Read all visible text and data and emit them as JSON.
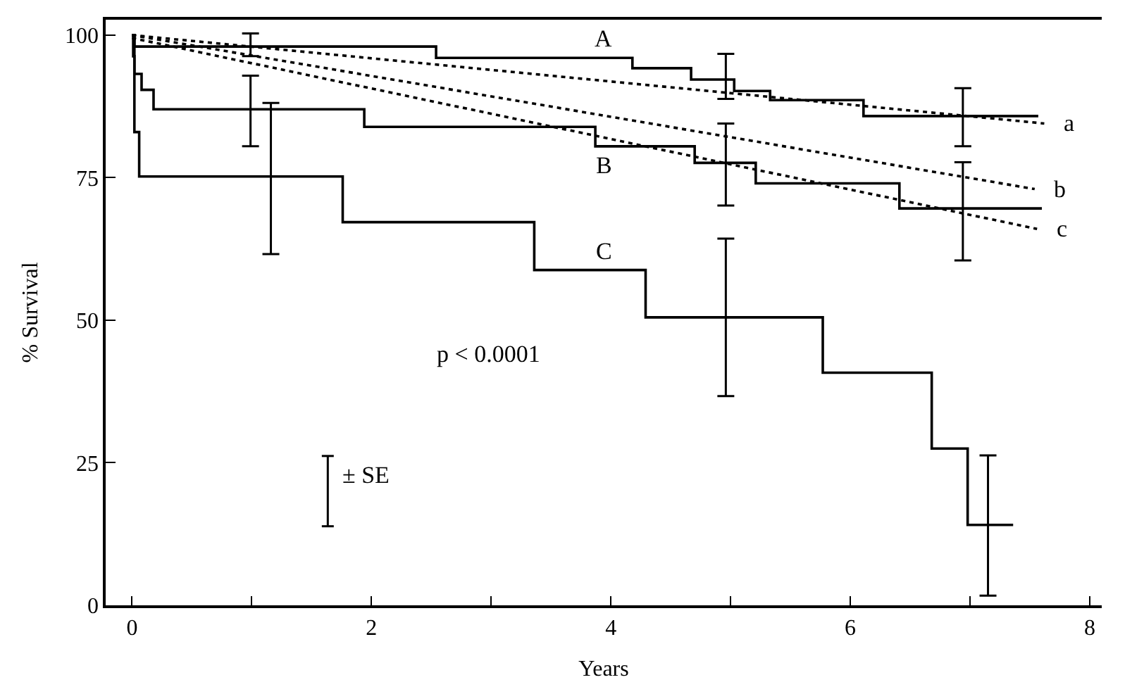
{
  "chart_data": {
    "type": "step",
    "xlabel": "Years",
    "ylabel": "% Survival",
    "xlim": [
      -0.22,
      8.1
    ],
    "ylim": [
      0,
      102.7
    ],
    "xticks": [
      0,
      {
        "value": 1,
        "label": null
      },
      2,
      {
        "value": 3,
        "label": null
      },
      4,
      {
        "value": 5,
        "label": null
      },
      6,
      {
        "value": 7,
        "label": null
      },
      8
    ],
    "yticks": [
      0,
      25,
      50,
      75,
      100
    ],
    "legend": false,
    "series": [
      {
        "name": "A",
        "color": "#000000",
        "x": [
          0,
          0.02,
          0.99,
          2.54,
          4.18,
          4.67,
          4.96,
          5.03,
          5.33,
          6.11,
          6.94,
          7.57
        ],
        "values": [
          100,
          98,
          98,
          96,
          94.2,
          92.2,
          92.2,
          90.2,
          88.6,
          85.8,
          85.8,
          85.8
        ],
        "errors": [
          null,
          null,
          [
            96.3,
            100.3
          ],
          null,
          null,
          null,
          [
            88.8,
            96.7
          ],
          null,
          null,
          null,
          [
            80.5,
            90.7
          ],
          null
        ]
      },
      {
        "name": "B",
        "color": "#000000",
        "x": [
          0,
          0.01,
          0.02,
          0.08,
          0.18,
          0.99,
          1.94,
          3.87,
          4.7,
          4.96,
          5.21,
          6.41,
          6.94,
          7.6
        ],
        "values": [
          100,
          96.3,
          93.2,
          90.4,
          87,
          87,
          83.9,
          80.5,
          77.6,
          77.6,
          74,
          69.6,
          69.6,
          69.6
        ],
        "errors": [
          null,
          null,
          null,
          null,
          null,
          [
            80.5,
            92.9
          ],
          null,
          null,
          null,
          [
            70.1,
            84.5
          ],
          null,
          null,
          [
            60.5,
            77.7
          ],
          null
        ]
      },
      {
        "name": "C",
        "color": "#000000",
        "x": [
          0,
          0.02,
          0.06,
          1.16,
          1.76,
          3.36,
          4.29,
          4.96,
          5.77,
          6.68,
          6.98,
          7.15,
          7.36
        ],
        "values": [
          100,
          83,
          75.2,
          75.2,
          67.2,
          58.8,
          50.5,
          50.5,
          40.8,
          27.5,
          14.1,
          14.1,
          14.1
        ],
        "errors": [
          null,
          null,
          null,
          [
            61.6,
            88.1
          ],
          null,
          null,
          null,
          [
            36.7,
            64.3
          ],
          null,
          null,
          null,
          [
            1.7,
            26.3
          ],
          null
        ]
      },
      {
        "name": "a",
        "type": "line",
        "color": "#000000",
        "line_style": "dotted",
        "x": [
          0,
          7.62
        ],
        "values": [
          100,
          84.5
        ]
      },
      {
        "name": "b",
        "type": "line",
        "color": "#000000",
        "line_style": "dotted",
        "x": [
          0,
          7.54
        ],
        "values": [
          100,
          73
        ]
      },
      {
        "name": "c",
        "type": "line",
        "color": "#000000",
        "line_style": "dotted",
        "x": [
          0,
          7.56
        ],
        "values": [
          99.5,
          66
        ]
      }
    ],
    "annotations": [
      "p < 0.0001",
      "± SE"
    ]
  }
}
